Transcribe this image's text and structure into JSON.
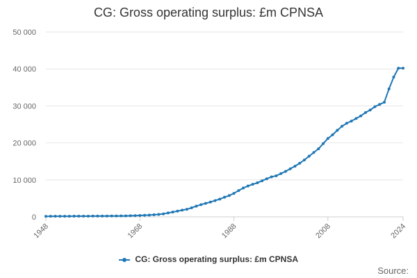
{
  "chart_data": {
    "type": "line",
    "title": "CG: Gross operating surplus: £m CPNSA",
    "xlabel": "",
    "ylabel": "",
    "xlim": [
      1948,
      2024
    ],
    "ylim": [
      0,
      50000
    ],
    "y_ticks": [
      0,
      10000,
      20000,
      30000,
      40000,
      50000
    ],
    "y_tick_labels": [
      "0",
      "10 000",
      "20 000",
      "30 000",
      "40 000",
      "50 000"
    ],
    "x_ticks": [
      1948,
      1968,
      1988,
      2008,
      2024
    ],
    "x_tick_labels": [
      "1948",
      "1968",
      "1988",
      "2008",
      "2024"
    ],
    "grid": "horizontal",
    "legend_position": "bottom",
    "series": [
      {
        "name": "CG: Gross operating surplus: £m CPNSA",
        "color": "#1f77b4",
        "x": [
          1948,
          1949,
          1950,
          1951,
          1952,
          1953,
          1954,
          1955,
          1956,
          1957,
          1958,
          1959,
          1960,
          1961,
          1962,
          1963,
          1964,
          1965,
          1966,
          1967,
          1968,
          1969,
          1970,
          1971,
          1972,
          1973,
          1974,
          1975,
          1976,
          1977,
          1978,
          1979,
          1980,
          1981,
          1982,
          1983,
          1984,
          1985,
          1986,
          1987,
          1988,
          1989,
          1990,
          1991,
          1992,
          1993,
          1994,
          1995,
          1996,
          1997,
          1998,
          1999,
          2000,
          2001,
          2002,
          2003,
          2004,
          2005,
          2006,
          2007,
          2008,
          2009,
          2010,
          2011,
          2012,
          2013,
          2014,
          2015,
          2016,
          2017,
          2018,
          2019,
          2020,
          2021,
          2022,
          2023,
          2024
        ],
        "values": [
          150,
          155,
          160,
          165,
          170,
          175,
          180,
          185,
          190,
          195,
          200,
          205,
          210,
          220,
          230,
          240,
          250,
          270,
          300,
          330,
          370,
          420,
          480,
          560,
          650,
          800,
          1050,
          1300,
          1550,
          1800,
          2050,
          2450,
          2900,
          3300,
          3650,
          4000,
          4400,
          4800,
          5300,
          5750,
          6350,
          7100,
          7800,
          8350,
          8800,
          9200,
          9750,
          10300,
          10800,
          11100,
          11700,
          12300,
          13000,
          13700,
          14500,
          15400,
          16400,
          17400,
          18400,
          19800,
          21200,
          22200,
          23400,
          24500,
          25300,
          25900,
          26600,
          27300,
          28200,
          28900,
          29800,
          30400,
          31000,
          34600,
          37800,
          40200,
          40200
        ]
      }
    ]
  },
  "legend": {
    "label": "CG: Gross operating surplus: £m CPNSA"
  },
  "source_label": "Source:"
}
